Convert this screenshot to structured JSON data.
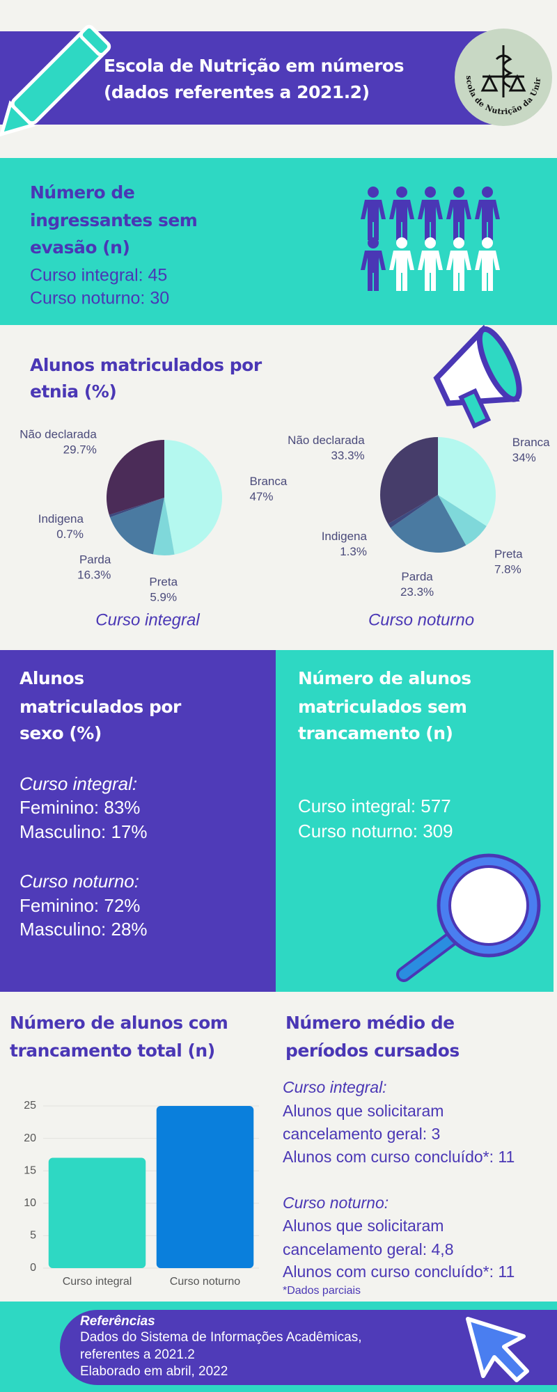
{
  "header": {
    "title_lines": [
      "Escola de Nutrição em números",
      "(dados referentes a 2021.2)"
    ],
    "logo_text": "Escola de Nutrição da Unirio"
  },
  "ingressantes": {
    "title_lines": [
      "Número de",
      "ingressantes sem",
      "evasão (n)"
    ],
    "lines": [
      "Curso integral: 45",
      "Curso noturno: 30"
    ]
  },
  "etnia": {
    "title_lines": [
      "Alunos matriculados por",
      "etnia (%)"
    ]
  },
  "sexo": {
    "title_lines": [
      "Alunos",
      "matriculados por",
      "sexo (%)"
    ],
    "groups": [
      {
        "heading": "Curso integral:",
        "lines": [
          "Feminino: 83%",
          "Masculino: 17%"
        ]
      },
      {
        "heading": "Curso noturno:",
        "lines": [
          "Feminino: 72%",
          "Masculino: 28%"
        ]
      }
    ]
  },
  "sem_trancamento": {
    "title_lines": [
      "Número de alunos",
      "matriculados sem",
      "trancamento (n)"
    ],
    "lines": [
      "Curso integral: 577",
      "Curso noturno: 309"
    ]
  },
  "trancamento": {
    "title_lines": [
      "Número de alunos com",
      "trancamento total (n)"
    ]
  },
  "periodos": {
    "title_lines": [
      "Número médio de",
      "períodos cursados"
    ],
    "groups": [
      {
        "heading": "Curso integral:",
        "lines": [
          "Alunos que solicitaram",
          "cancelamento geral: 3",
          "Alunos com curso concluído*: 11"
        ]
      },
      {
        "heading": "Curso noturno:",
        "lines": [
          "Alunos que solicitaram",
          "cancelamento geral: 4,8",
          "Alunos com curso concluído*: 11"
        ]
      }
    ],
    "note": "*Dados parciais"
  },
  "footer": {
    "heading": "Referências",
    "lines": [
      "Dados do Sistema de Informações Acadêmicas,",
      "referentes a 2021.2",
      "Elaborado em abril, 2022"
    ]
  },
  "chart_data": [
    {
      "type": "pie",
      "title": "Curso integral",
      "categories": [
        "Branca",
        "Preta",
        "Parda",
        "Indigena",
        "Não declarada"
      ],
      "values": [
        47,
        5.9,
        16.3,
        0.7,
        29.7
      ],
      "value_labels": [
        "47%",
        "5.9%",
        "16.3%",
        "0.7%",
        "29.7%"
      ],
      "colors": [
        "#b4f8ef",
        "#7fd8da",
        "#4a7aa1",
        "#3d4a80",
        "#4b2c58"
      ]
    },
    {
      "type": "pie",
      "title": "Curso noturno",
      "categories": [
        "Branca",
        "Preta",
        "Parda",
        "Indigena",
        "Não declarada"
      ],
      "values": [
        34,
        7.8,
        23.3,
        1.3,
        33.3
      ],
      "value_labels": [
        "34%",
        "7.8%",
        "23.3%",
        "1.3%",
        "33.3%"
      ],
      "colors": [
        "#b4f8ef",
        "#7fd8da",
        "#4a7aa1",
        "#3d4a80",
        "#463d6a"
      ]
    },
    {
      "type": "bar",
      "categories": [
        "Curso integral",
        "Curso noturno"
      ],
      "values": [
        17,
        25
      ],
      "colors": [
        "#2ed8c3",
        "#0a7fdc"
      ],
      "ylim": [
        0,
        25
      ],
      "yticks": [
        0,
        5,
        10,
        15,
        20,
        25
      ],
      "grid": true
    }
  ]
}
